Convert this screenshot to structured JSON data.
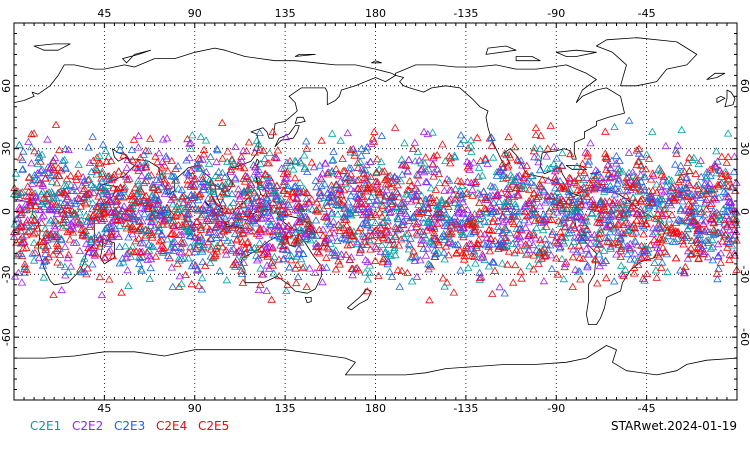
{
  "map": {
    "projection": "cylindrical-equidistant",
    "center_longitude": 180,
    "lon_range": [
      0,
      360
    ],
    "lat_range": [
      -90,
      90
    ],
    "grid": "dotted",
    "top_lon_labels": [
      "45",
      "90",
      "135",
      "180",
      "-135",
      "-90",
      "-45"
    ],
    "bottom_lon_labels": [
      "45",
      "90",
      "135",
      "180",
      "-135",
      "-90",
      "-45"
    ],
    "left_lat_labels": [
      "60",
      "30",
      "0",
      "-30",
      "-60"
    ],
    "right_lat_labels": [
      "60",
      "30",
      "0",
      "-30",
      "-60"
    ]
  },
  "observations": {
    "marker": "open-triangle",
    "lat_band": [
      -45,
      45
    ],
    "series": [
      {
        "name": "C2E1",
        "color": "#00a0a0"
      },
      {
        "name": "C2E2",
        "color": "#a020f0"
      },
      {
        "name": "C2E3",
        "color": "#1e64e6"
      },
      {
        "name": "C2E4",
        "color": "#dc1414"
      },
      {
        "name": "C2E5",
        "color": "#ff0000"
      }
    ]
  },
  "legend": [
    {
      "label": "C2E1",
      "color": "#00a0a0"
    },
    {
      "label": "C2E2",
      "color": "#a020f0"
    },
    {
      "label": "C2E3",
      "color": "#1e64e6"
    },
    {
      "label": "C2E4",
      "color": "#dc1414"
    },
    {
      "label": "C2E5",
      "color": "#ff0000"
    }
  ],
  "product_label": "STARwet.2024-01-19"
}
